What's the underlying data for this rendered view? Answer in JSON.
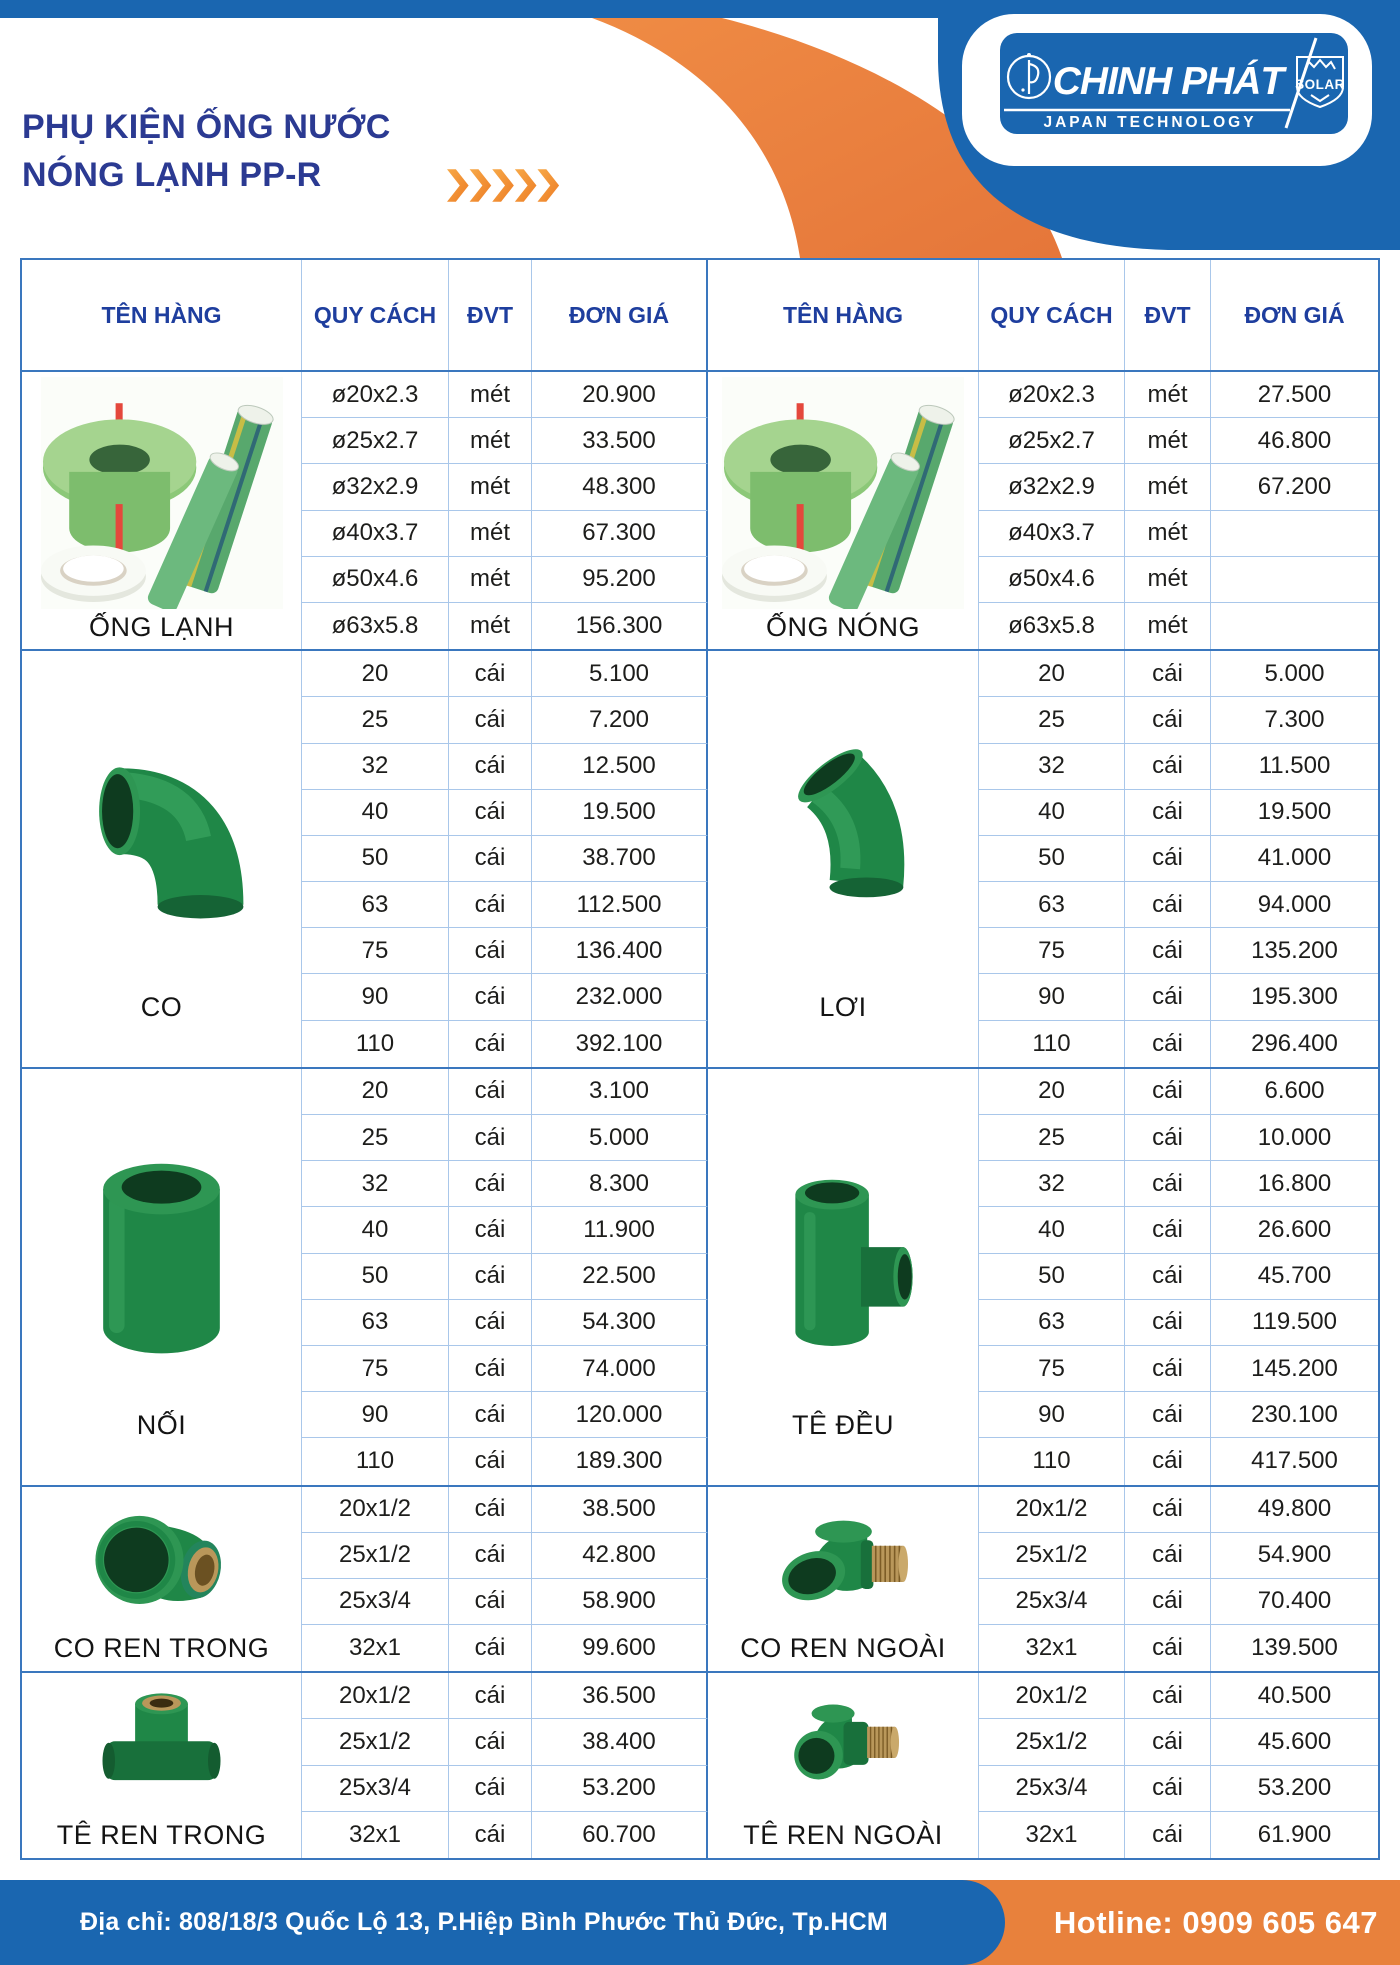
{
  "header": {
    "title_line1": "PHỤ KIỆN ỐNG NƯỚC",
    "title_line2": "NÓNG LẠNH PP-R",
    "chevrons_icon": "orange-chevrons-icon",
    "logo": {
      "monogram_icon": "cp-monogram-icon",
      "brand": "CHINH PHÁT",
      "badge": "SOLAR",
      "badge_icon": "solar-shield-icon",
      "tagline": "JAPAN TECHNOLOGY"
    }
  },
  "colors": {
    "blue": "#1a66b0",
    "orange": "#e8813c",
    "title_blue": "#2b3a92",
    "table_line_light": "#a9c7ea",
    "table_line_dark": "#3a77be",
    "fitting_green": "#1f8747"
  },
  "table": {
    "column_headers": [
      "TÊN HÀNG",
      "QUY CÁCH",
      "ĐVT",
      "ĐƠN GIÁ",
      "TÊN HÀNG",
      "QUY CÁCH",
      "ĐVT",
      "ĐƠN GIÁ"
    ],
    "bands": [
      {
        "left": {
          "name": "ỐNG LẠNH",
          "image": "cold-hot-pipes-image",
          "rows": [
            [
              "ø20x2.3",
              "mét",
              "20.900"
            ],
            [
              "ø25x2.7",
              "mét",
              "33.500"
            ],
            [
              "ø32x2.9",
              "mét",
              "48.300"
            ],
            [
              "ø40x3.7",
              "mét",
              "67.300"
            ],
            [
              "ø50x4.6",
              "mét",
              "95.200"
            ],
            [
              "ø63x5.8",
              "mét",
              "156.300"
            ]
          ]
        },
        "right": {
          "name": "ỐNG NÓNG",
          "image": "cold-hot-pipes-image",
          "rows": [
            [
              "ø20x2.3",
              "mét",
              "27.500"
            ],
            [
              "ø25x2.7",
              "mét",
              "46.800"
            ],
            [
              "ø32x2.9",
              "mét",
              "67.200"
            ],
            [
              "ø40x3.7",
              "mét",
              ""
            ],
            [
              "ø50x4.6",
              "mét",
              ""
            ],
            [
              "ø63x5.8",
              "mét",
              ""
            ]
          ]
        }
      },
      {
        "left": {
          "name": "CO",
          "image": "elbow-90-image",
          "rows": [
            [
              "20",
              "cái",
              "5.100"
            ],
            [
              "25",
              "cái",
              "7.200"
            ],
            [
              "32",
              "cái",
              "12.500"
            ],
            [
              "40",
              "cái",
              "19.500"
            ],
            [
              "50",
              "cái",
              "38.700"
            ],
            [
              "63",
              "cái",
              "112.500"
            ],
            [
              "75",
              "cái",
              "136.400"
            ],
            [
              "90",
              "cái",
              "232.000"
            ],
            [
              "110",
              "cái",
              "392.100"
            ]
          ]
        },
        "right": {
          "name": "LƠI",
          "image": "elbow-45-image",
          "rows": [
            [
              "20",
              "cái",
              "5.000"
            ],
            [
              "25",
              "cái",
              "7.300"
            ],
            [
              "32",
              "cái",
              "11.500"
            ],
            [
              "40",
              "cái",
              "19.500"
            ],
            [
              "50",
              "cái",
              "41.000"
            ],
            [
              "63",
              "cái",
              "94.000"
            ],
            [
              "75",
              "cái",
              "135.200"
            ],
            [
              "90",
              "cái",
              "195.300"
            ],
            [
              "110",
              "cái",
              "296.400"
            ]
          ]
        }
      },
      {
        "left": {
          "name": "NỐI",
          "image": "coupling-image",
          "rows": [
            [
              "20",
              "cái",
              "3.100"
            ],
            [
              "25",
              "cái",
              "5.000"
            ],
            [
              "32",
              "cái",
              "8.300"
            ],
            [
              "40",
              "cái",
              "11.900"
            ],
            [
              "50",
              "cái",
              "22.500"
            ],
            [
              "63",
              "cái",
              "54.300"
            ],
            [
              "75",
              "cái",
              "74.000"
            ],
            [
              "90",
              "cái",
              "120.000"
            ],
            [
              "110",
              "cái",
              "189.300"
            ]
          ]
        },
        "right": {
          "name": "TÊ ĐỀU",
          "image": "equal-tee-image",
          "rows": [
            [
              "20",
              "cái",
              "6.600"
            ],
            [
              "25",
              "cái",
              "10.000"
            ],
            [
              "32",
              "cái",
              "16.800"
            ],
            [
              "40",
              "cái",
              "26.600"
            ],
            [
              "50",
              "cái",
              "45.700"
            ],
            [
              "63",
              "cái",
              "119.500"
            ],
            [
              "75",
              "cái",
              "145.200"
            ],
            [
              "90",
              "cái",
              "230.100"
            ],
            [
              "110",
              "cái",
              "417.500"
            ]
          ]
        }
      },
      {
        "left": {
          "name": "CO REN TRONG",
          "image": "female-thread-elbow-image",
          "rows": [
            [
              "20x1/2",
              "cái",
              "38.500"
            ],
            [
              "25x1/2",
              "cái",
              "42.800"
            ],
            [
              "25x3/4",
              "cái",
              "58.900"
            ],
            [
              "32x1",
              "cái",
              "99.600"
            ]
          ]
        },
        "right": {
          "name": "CO REN NGOÀI",
          "image": "male-thread-elbow-image",
          "rows": [
            [
              "20x1/2",
              "cái",
              "49.800"
            ],
            [
              "25x1/2",
              "cái",
              "54.900"
            ],
            [
              "25x3/4",
              "cái",
              "70.400"
            ],
            [
              "32x1",
              "cái",
              "139.500"
            ]
          ]
        }
      },
      {
        "left": {
          "name": "TÊ REN TRONG",
          "image": "female-thread-tee-image",
          "rows": [
            [
              "20x1/2",
              "cái",
              "36.500"
            ],
            [
              "25x1/2",
              "cái",
              "38.400"
            ],
            [
              "25x3/4",
              "cái",
              "53.200"
            ],
            [
              "32x1",
              "cái",
              "60.700"
            ]
          ]
        },
        "right": {
          "name": "TÊ REN NGOÀI",
          "image": "male-thread-tee-image",
          "rows": [
            [
              "20x1/2",
              "cái",
              "40.500"
            ],
            [
              "25x1/2",
              "cái",
              "45.600"
            ],
            [
              "25x3/4",
              "cái",
              "53.200"
            ],
            [
              "32x1",
              "cái",
              "61.900"
            ]
          ]
        }
      }
    ]
  },
  "footer": {
    "address": "Địa chỉ: 808/18/3 Quốc Lộ 13, P.Hiệp Bình Phước Thủ Đức, Tp.HCM",
    "hotline": "Hotline: 0909 605 647"
  }
}
